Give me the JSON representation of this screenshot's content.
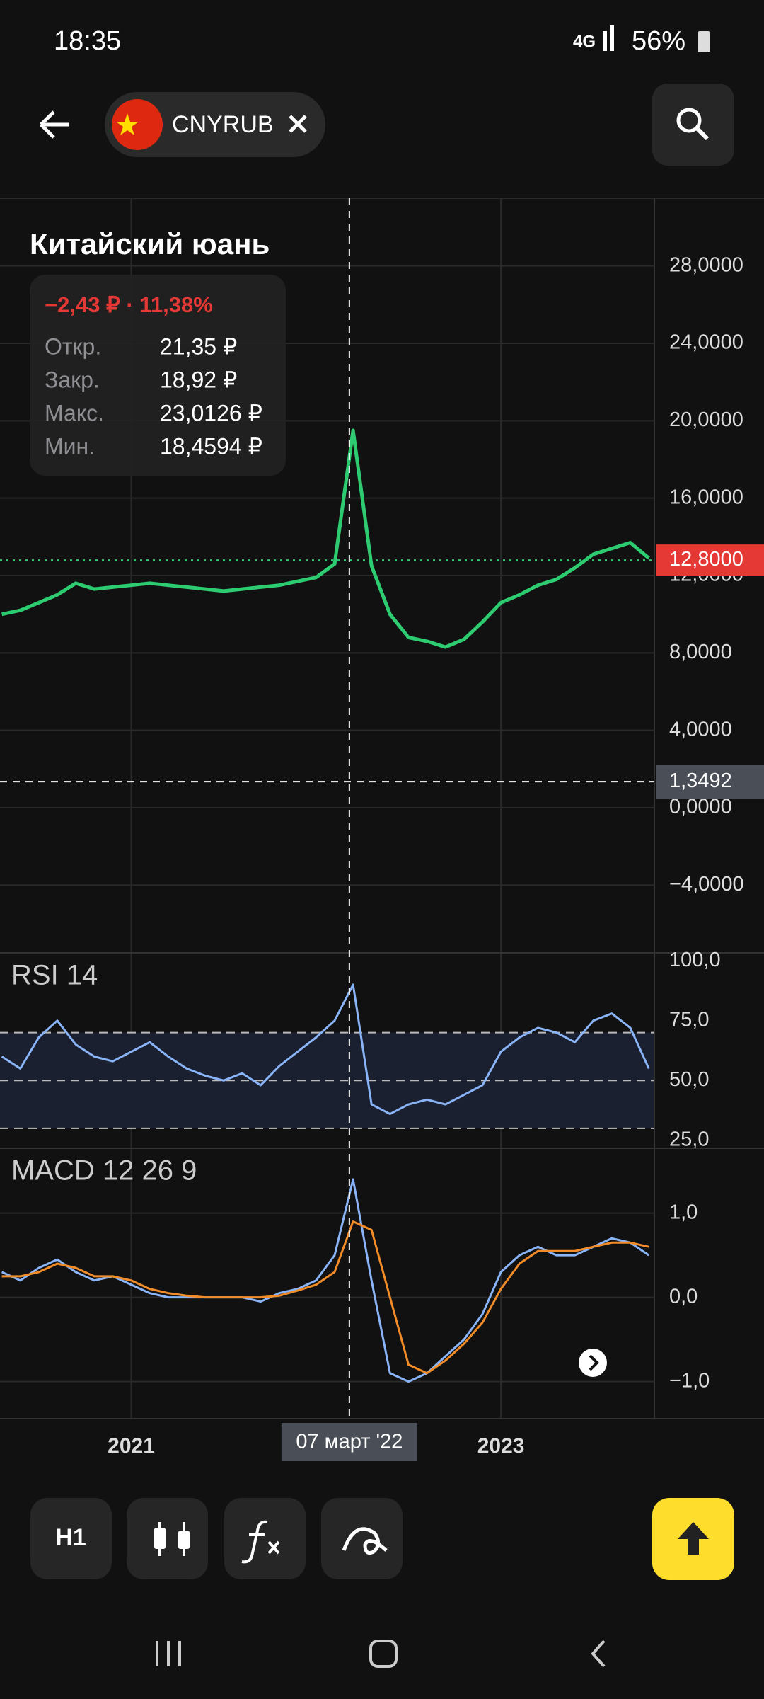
{
  "status_bar": {
    "time": "18:35",
    "network": "4G",
    "battery": "56%"
  },
  "header": {
    "symbol": "CNYRUB"
  },
  "info": {
    "title": "Китайский юань",
    "change": "−2,43 ₽ · 11,38%",
    "rows": [
      [
        "Откр.",
        "21,35 ₽"
      ],
      [
        "Закр.",
        "18,92 ₽"
      ],
      [
        "Макс.",
        "23,0126 ₽"
      ],
      [
        "Мин.",
        "18,4594 ₽"
      ]
    ]
  },
  "chart_data": [
    {
      "type": "line",
      "xlim": [
        2020.29,
        2023.83
      ],
      "ylim": [
        -7.5,
        31.5
      ],
      "grid": true,
      "xticks": [
        2021,
        2023
      ],
      "yticks": [
        {
          "value": 28,
          "label": "28,0000"
        },
        {
          "value": 24,
          "label": "24,0000"
        },
        {
          "value": 20,
          "label": "20,0000"
        },
        {
          "value": 16,
          "label": "16,0000"
        },
        {
          "value": 12,
          "label": "12,0000"
        },
        {
          "value": 8,
          "label": "8,0000"
        },
        {
          "value": 4,
          "label": "4,0000"
        },
        {
          "value": 0,
          "label": "0,0000"
        },
        {
          "value": -4,
          "label": "−4,0000"
        }
      ],
      "x": [
        2020.3,
        2020.4,
        2020.5,
        2020.6,
        2020.7,
        2020.8,
        2020.9,
        2021.0,
        2021.1,
        2021.2,
        2021.3,
        2021.4,
        2021.5,
        2021.6,
        2021.7,
        2021.8,
        2021.9,
        2022.0,
        2022.1,
        2022.2,
        2022.3,
        2022.4,
        2022.5,
        2022.6,
        2022.7,
        2022.8,
        2022.9,
        2023.0,
        2023.1,
        2023.2,
        2023.3,
        2023.4,
        2023.5,
        2023.6,
        2023.7,
        2023.8
      ],
      "series": [
        {
          "color": "#2ecc71",
          "values": [
            10.0,
            10.2,
            10.6,
            11.0,
            11.6,
            11.3,
            11.4,
            11.5,
            11.6,
            11.5,
            11.4,
            11.3,
            11.2,
            11.3,
            11.4,
            11.5,
            11.7,
            11.9,
            12.6,
            19.5,
            12.5,
            10.0,
            8.8,
            8.6,
            8.3,
            8.7,
            9.6,
            10.6,
            11.0,
            11.5,
            11.8,
            12.4,
            13.1,
            13.4,
            13.7,
            12.9
          ]
        }
      ],
      "last_price": {
        "value": 12.8,
        "label": "12,8000"
      },
      "crosshair": {
        "x": 2022.18,
        "y": 1.3492,
        "x_label": "07 март '22",
        "y_label": "1,3492"
      }
    },
    {
      "type": "line",
      "title": "RSI 14",
      "xlim": [
        2020.29,
        2023.83
      ],
      "ylim": [
        21.7,
        103.3
      ],
      "grid": false,
      "yticks": [
        {
          "value": 100,
          "label": "100,0"
        },
        {
          "value": 75,
          "label": "75,0"
        },
        {
          "value": 50,
          "label": "50,0"
        },
        {
          "value": 25,
          "label": "25,0"
        }
      ],
      "levels": [
        70,
        50,
        30
      ],
      "x": [
        2020.3,
        2020.4,
        2020.5,
        2020.6,
        2020.7,
        2020.8,
        2020.9,
        2021.0,
        2021.1,
        2021.2,
        2021.3,
        2021.4,
        2021.5,
        2021.6,
        2021.7,
        2021.8,
        2021.9,
        2022.0,
        2022.1,
        2022.2,
        2022.3,
        2022.4,
        2022.5,
        2022.6,
        2022.7,
        2022.8,
        2022.9,
        2023.0,
        2023.1,
        2023.2,
        2023.3,
        2023.4,
        2023.5,
        2023.6,
        2023.7,
        2023.8
      ],
      "series": [
        {
          "color": "#8ab4f8",
          "values": [
            60,
            55,
            68,
            75,
            65,
            60,
            58,
            62,
            66,
            60,
            55,
            52,
            50,
            53,
            48,
            56,
            62,
            68,
            75,
            90,
            40,
            36,
            40,
            42,
            40,
            44,
            48,
            62,
            68,
            72,
            70,
            66,
            75,
            78,
            72,
            55
          ]
        }
      ]
    },
    {
      "type": "line",
      "title": "MACD 12 26 9",
      "xlim": [
        2020.29,
        2023.83
      ],
      "ylim": [
        -1.44,
        1.77
      ],
      "grid": true,
      "yticks": [
        {
          "value": 1,
          "label": "1,0"
        },
        {
          "value": 0,
          "label": "0,0"
        },
        {
          "value": -1,
          "label": "−1,0"
        }
      ],
      "x": [
        2020.3,
        2020.4,
        2020.5,
        2020.6,
        2020.7,
        2020.8,
        2020.9,
        2021.0,
        2021.1,
        2021.2,
        2021.3,
        2021.4,
        2021.5,
        2021.6,
        2021.7,
        2021.8,
        2021.9,
        2022.0,
        2022.1,
        2022.2,
        2022.3,
        2022.4,
        2022.5,
        2022.6,
        2022.7,
        2022.8,
        2022.9,
        2023.0,
        2023.1,
        2023.2,
        2023.3,
        2023.4,
        2023.5,
        2023.6,
        2023.7,
        2023.8
      ],
      "series": [
        {
          "color": "#8ab4f8",
          "values": [
            0.3,
            0.2,
            0.35,
            0.45,
            0.3,
            0.2,
            0.25,
            0.15,
            0.05,
            0,
            0,
            0,
            0,
            0,
            -0.05,
            0.05,
            0.1,
            0.2,
            0.5,
            1.4,
            0.2,
            -0.9,
            -1.0,
            -0.9,
            -0.7,
            -0.5,
            -0.2,
            0.3,
            0.5,
            0.6,
            0.5,
            0.5,
            0.6,
            0.7,
            0.65,
            0.5
          ]
        },
        {
          "color": "#f28c28",
          "values": [
            0.25,
            0.25,
            0.3,
            0.4,
            0.35,
            0.25,
            0.25,
            0.2,
            0.1,
            0.05,
            0.02,
            0,
            0,
            0,
            0,
            0.02,
            0.08,
            0.15,
            0.3,
            0.9,
            0.8,
            0.0,
            -0.8,
            -0.9,
            -0.75,
            -0.55,
            -0.3,
            0.1,
            0.4,
            0.55,
            0.55,
            0.55,
            0.6,
            0.65,
            0.65,
            0.6
          ]
        }
      ]
    }
  ],
  "toolbar": {
    "interval": "H1"
  }
}
